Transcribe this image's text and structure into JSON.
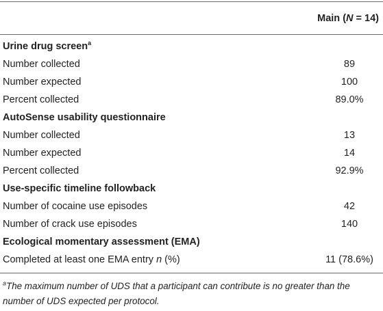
{
  "table": {
    "header": {
      "column_parts": [
        "Main (",
        "N",
        " = 14)"
      ]
    },
    "sections": [
      {
        "title": "Urine drug screen",
        "title_sup": "a",
        "rows": [
          {
            "label": "Number collected",
            "value": "89"
          },
          {
            "label": "Number expected",
            "value": "100"
          },
          {
            "label": "Percent collected",
            "value": "89.0%"
          }
        ]
      },
      {
        "title": "AutoSense usability questionnaire",
        "rows": [
          {
            "label": "Number collected",
            "value": "13"
          },
          {
            "label": "Number expected",
            "value": "14"
          },
          {
            "label": "Percent collected",
            "value": "92.9%"
          }
        ]
      },
      {
        "title": "Use-specific timeline followback",
        "rows": [
          {
            "label": "Number of cocaine use episodes",
            "value": "42"
          },
          {
            "label": "Number of crack use episodes",
            "value": "140"
          }
        ]
      },
      {
        "title": "Ecological momentary assessment (EMA)",
        "rows": [
          {
            "label_parts": [
              "Completed at least one EMA entry ",
              "n",
              " (%)"
            ],
            "value": "11 (78.6%)"
          }
        ]
      }
    ]
  },
  "footnote": {
    "marker": "a",
    "text": "The maximum number of UDS that a participant can contribute is no greater than the number of UDS expected per protocol."
  }
}
